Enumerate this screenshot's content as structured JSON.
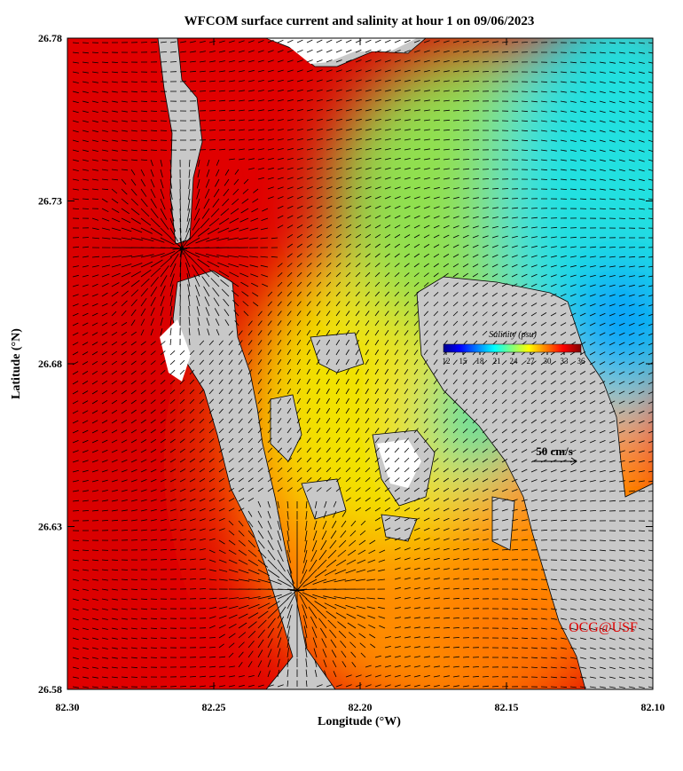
{
  "map": {
    "title": "WFCOM surface current and salinity at hour 1 on 09/06/2023",
    "xlabel": "Longitude (°W)",
    "ylabel": "Latitude (°N)",
    "xlim": [
      82.3,
      82.1
    ],
    "ylim": [
      26.58,
      26.78
    ],
    "xticks": [
      {
        "value": 82.3,
        "label": "82.30"
      },
      {
        "value": 82.25,
        "label": "82.25"
      },
      {
        "value": 82.2,
        "label": "82.20"
      },
      {
        "value": 82.15,
        "label": "82.15"
      },
      {
        "value": 82.1,
        "label": "82.10"
      }
    ],
    "yticks": [
      {
        "value": 26.58,
        "label": "26.58"
      },
      {
        "value": 26.63,
        "label": "26.63"
      },
      {
        "value": 26.68,
        "label": "26.68"
      },
      {
        "value": 26.73,
        "label": "26.73"
      },
      {
        "value": 26.78,
        "label": "26.78"
      }
    ],
    "colorbar": {
      "title": "Salinity (psu)",
      "lim": [
        12,
        36
      ],
      "ticks": [
        12,
        15,
        18,
        21,
        24,
        27,
        30,
        33,
        36
      ]
    },
    "scale_label": "50 cm/s",
    "credit": "OCG@USF"
  }
}
